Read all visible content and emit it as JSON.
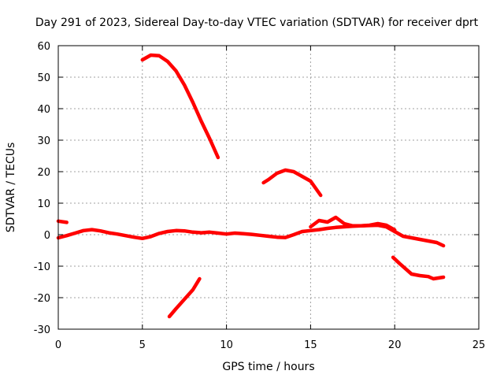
{
  "chart_data": {
    "type": "line",
    "title": "Day 291 of 2023, Sidereal Day-to-day VTEC variation (SDTVAR) for receiver dprt",
    "xlabel": "GPS time / hours",
    "ylabel": "SDTVAR / TECUs",
    "xlim": [
      0,
      25
    ],
    "ylim": [
      -30,
      60
    ],
    "xticks": [
      0,
      5,
      10,
      15,
      20,
      25
    ],
    "yticks": [
      -30,
      -20,
      -10,
      0,
      10,
      20,
      30,
      40,
      50,
      60
    ],
    "grid": true,
    "legend": "none",
    "colors": {
      "series": "#ff0000",
      "grid": "#a0a0a0",
      "axis": "#000000"
    },
    "series": [
      {
        "name": "segment-1",
        "points": [
          [
            0.0,
            4.3
          ],
          [
            0.5,
            3.9
          ]
        ]
      },
      {
        "name": "segment-2",
        "points": [
          [
            0.0,
            -1.0
          ],
          [
            0.5,
            -0.3
          ],
          [
            1.0,
            0.5
          ],
          [
            1.5,
            1.3
          ],
          [
            2.0,
            1.6
          ],
          [
            2.5,
            1.2
          ],
          [
            3.0,
            0.6
          ],
          [
            3.5,
            0.2
          ],
          [
            4.0,
            -0.3
          ],
          [
            4.5,
            -0.8
          ],
          [
            5.0,
            -1.2
          ],
          [
            5.5,
            -0.6
          ],
          [
            6.0,
            0.4
          ],
          [
            6.5,
            1.0
          ],
          [
            7.0,
            1.3
          ],
          [
            7.5,
            1.2
          ],
          [
            8.0,
            0.8
          ],
          [
            8.5,
            0.6
          ],
          [
            9.0,
            0.8
          ],
          [
            9.5,
            0.5
          ],
          [
            10.0,
            0.2
          ],
          [
            10.5,
            0.5
          ],
          [
            11.0,
            0.3
          ],
          [
            11.5,
            0.1
          ],
          [
            12.0,
            -0.2
          ],
          [
            12.5,
            -0.5
          ],
          [
            13.0,
            -0.8
          ],
          [
            13.5,
            -0.9
          ],
          [
            14.0,
            0.0
          ],
          [
            14.5,
            1.0
          ],
          [
            15.0,
            1.3
          ],
          [
            15.5,
            1.6
          ],
          [
            16.0,
            2.0
          ],
          [
            16.5,
            2.3
          ],
          [
            17.0,
            2.5
          ],
          [
            17.5,
            2.7
          ],
          [
            18.0,
            2.8
          ],
          [
            18.5,
            2.9
          ],
          [
            19.0,
            3.0
          ],
          [
            19.5,
            2.5
          ],
          [
            20.0,
            1.0
          ],
          [
            20.5,
            -0.5
          ],
          [
            21.0,
            -1.0
          ],
          [
            21.5,
            -1.5
          ],
          [
            22.0,
            -2.0
          ],
          [
            22.5,
            -2.5
          ],
          [
            22.9,
            -3.5
          ]
        ]
      },
      {
        "name": "segment-3",
        "points": [
          [
            15.0,
            2.5
          ],
          [
            15.5,
            4.5
          ],
          [
            16.0,
            4.0
          ],
          [
            16.5,
            5.5
          ],
          [
            17.0,
            3.5
          ],
          [
            17.5,
            2.8
          ],
          [
            18.0,
            2.8
          ],
          [
            18.5,
            3.0
          ],
          [
            19.0,
            3.5
          ],
          [
            19.5,
            3.0
          ],
          [
            20.0,
            1.5
          ]
        ]
      },
      {
        "name": "segment-4",
        "points": [
          [
            5.0,
            55.5
          ],
          [
            5.5,
            57.0
          ],
          [
            6.0,
            56.8
          ],
          [
            6.5,
            55.0
          ],
          [
            7.0,
            52.0
          ],
          [
            7.5,
            47.5
          ],
          [
            8.0,
            42.0
          ],
          [
            8.5,
            36.0
          ],
          [
            9.0,
            30.5
          ],
          [
            9.5,
            24.5
          ]
        ]
      },
      {
        "name": "segment-5",
        "points": [
          [
            12.2,
            16.5
          ],
          [
            12.5,
            17.5
          ],
          [
            13.0,
            19.5
          ],
          [
            13.5,
            20.5
          ],
          [
            14.0,
            20.0
          ],
          [
            14.5,
            18.5
          ],
          [
            15.0,
            17.0
          ],
          [
            15.6,
            12.5
          ]
        ]
      },
      {
        "name": "segment-6",
        "points": [
          [
            6.6,
            -26.0
          ],
          [
            7.0,
            -23.5
          ],
          [
            7.5,
            -20.5
          ],
          [
            8.0,
            -17.5
          ],
          [
            8.4,
            -14.0
          ]
        ]
      },
      {
        "name": "segment-7",
        "points": [
          [
            19.9,
            -7.2
          ],
          [
            20.3,
            -9.2
          ],
          [
            21.0,
            -12.5
          ],
          [
            21.5,
            -13.0
          ],
          [
            22.0,
            -13.3
          ],
          [
            22.3,
            -14.0
          ],
          [
            22.9,
            -13.5
          ]
        ]
      }
    ]
  }
}
